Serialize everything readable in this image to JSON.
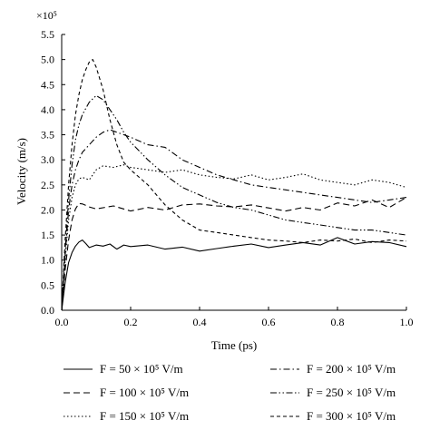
{
  "chart_data": {
    "type": "line",
    "title": "",
    "xlabel": "Time (ps)",
    "ylabel": "Velocity (m/s)",
    "y_multiplier": "×10⁵",
    "xlim": [
      0,
      1.0
    ],
    "ylim": [
      0,
      5.5
    ],
    "x_ticks": [
      "0.0",
      "0.2",
      "0.4",
      "0.6",
      "0.8",
      "1.0"
    ],
    "y_ticks": [
      "0.0",
      "0.5",
      "1.0",
      "1.5",
      "2.0",
      "2.5",
      "3.0",
      "3.5",
      "4.0",
      "4.5",
      "5.0",
      "5.5"
    ],
    "grid": false,
    "legend_position": "bottom",
    "series": [
      {
        "name": "F = 50 × 10⁵ V/m",
        "dash": "solid",
        "x": [
          0,
          0.01,
          0.02,
          0.03,
          0.04,
          0.05,
          0.06,
          0.07,
          0.08,
          0.1,
          0.12,
          0.14,
          0.16,
          0.18,
          0.2,
          0.25,
          0.3,
          0.35,
          0.4,
          0.45,
          0.5,
          0.55,
          0.6,
          0.65,
          0.7,
          0.75,
          0.8,
          0.85,
          0.9,
          0.95,
          1.0
        ],
        "y": [
          0,
          0.55,
          0.95,
          1.15,
          1.28,
          1.36,
          1.4,
          1.33,
          1.25,
          1.3,
          1.28,
          1.32,
          1.22,
          1.3,
          1.27,
          1.3,
          1.22,
          1.26,
          1.18,
          1.23,
          1.28,
          1.32,
          1.25,
          1.3,
          1.35,
          1.3,
          1.45,
          1.32,
          1.37,
          1.35,
          1.27
        ]
      },
      {
        "name": "F = 100 × 10⁵ V/m",
        "dash": "long-dash",
        "x": [
          0,
          0.01,
          0.02,
          0.03,
          0.04,
          0.05,
          0.06,
          0.08,
          0.1,
          0.15,
          0.2,
          0.25,
          0.3,
          0.35,
          0.4,
          0.45,
          0.5,
          0.55,
          0.6,
          0.65,
          0.7,
          0.75,
          0.8,
          0.85,
          0.9,
          0.95,
          1.0
        ],
        "y": [
          0,
          0.8,
          1.4,
          1.8,
          2.02,
          2.13,
          2.12,
          2.06,
          2.02,
          2.08,
          1.98,
          2.05,
          2.0,
          2.1,
          2.12,
          2.08,
          2.06,
          2.1,
          2.04,
          1.98,
          2.05,
          2.0,
          2.14,
          2.08,
          2.2,
          2.05,
          2.25
        ]
      },
      {
        "name": "F = 150 × 10⁵ V/m",
        "dash": "dotted",
        "x": [
          0,
          0.01,
          0.02,
          0.03,
          0.04,
          0.05,
          0.06,
          0.08,
          0.1,
          0.12,
          0.15,
          0.18,
          0.2,
          0.25,
          0.3,
          0.35,
          0.4,
          0.45,
          0.5,
          0.55,
          0.6,
          0.65,
          0.7,
          0.75,
          0.8,
          0.85,
          0.9,
          0.95,
          1.0
        ],
        "y": [
          0,
          1.0,
          1.8,
          2.25,
          2.5,
          2.62,
          2.65,
          2.6,
          2.8,
          2.88,
          2.85,
          2.9,
          2.85,
          2.8,
          2.75,
          2.8,
          2.7,
          2.65,
          2.62,
          2.7,
          2.6,
          2.65,
          2.72,
          2.6,
          2.55,
          2.5,
          2.6,
          2.55,
          2.45
        ]
      },
      {
        "name": "F = 200 × 10⁵ V/m",
        "dash": "dash-dot",
        "x": [
          0,
          0.01,
          0.02,
          0.03,
          0.04,
          0.05,
          0.06,
          0.08,
          0.1,
          0.12,
          0.14,
          0.16,
          0.18,
          0.2,
          0.25,
          0.3,
          0.35,
          0.4,
          0.45,
          0.5,
          0.55,
          0.6,
          0.65,
          0.7,
          0.75,
          0.8,
          0.85,
          0.9,
          0.95,
          1.0
        ],
        "y": [
          0,
          1.1,
          2.0,
          2.5,
          2.8,
          3.0,
          3.15,
          3.3,
          3.45,
          3.55,
          3.6,
          3.55,
          3.5,
          3.45,
          3.3,
          3.25,
          3.0,
          2.85,
          2.7,
          2.6,
          2.5,
          2.45,
          2.4,
          2.35,
          2.3,
          2.25,
          2.2,
          2.15,
          2.2,
          2.25
        ]
      },
      {
        "name": "F = 250 × 10⁵ V/m",
        "dash": "dash-dot-dot",
        "x": [
          0,
          0.01,
          0.02,
          0.03,
          0.04,
          0.05,
          0.06,
          0.08,
          0.1,
          0.12,
          0.14,
          0.16,
          0.18,
          0.2,
          0.25,
          0.3,
          0.35,
          0.4,
          0.45,
          0.5,
          0.55,
          0.6,
          0.65,
          0.7,
          0.75,
          0.8,
          0.85,
          0.9,
          0.95,
          1.0
        ],
        "y": [
          0,
          1.2,
          2.2,
          2.9,
          3.4,
          3.7,
          3.9,
          4.15,
          4.28,
          4.2,
          4.0,
          3.8,
          3.55,
          3.35,
          3.0,
          2.7,
          2.45,
          2.3,
          2.15,
          2.05,
          2.0,
          1.9,
          1.8,
          1.75,
          1.7,
          1.65,
          1.6,
          1.6,
          1.55,
          1.5
        ]
      },
      {
        "name": "F = 300 × 10⁵ V/m",
        "dash": "short-dash",
        "x": [
          0,
          0.01,
          0.02,
          0.03,
          0.04,
          0.05,
          0.06,
          0.07,
          0.08,
          0.09,
          0.1,
          0.12,
          0.14,
          0.16,
          0.18,
          0.2,
          0.25,
          0.3,
          0.35,
          0.4,
          0.45,
          0.5,
          0.55,
          0.6,
          0.65,
          0.7,
          0.75,
          0.8,
          0.85,
          0.9,
          0.95,
          1.0
        ],
        "y": [
          0,
          1.4,
          2.5,
          3.3,
          3.9,
          4.3,
          4.6,
          4.8,
          4.95,
          5.0,
          4.85,
          4.4,
          3.8,
          3.3,
          2.95,
          2.8,
          2.5,
          2.1,
          1.8,
          1.6,
          1.55,
          1.5,
          1.45,
          1.4,
          1.38,
          1.35,
          1.4,
          1.38,
          1.42,
          1.35,
          1.4,
          1.38
        ]
      }
    ]
  }
}
